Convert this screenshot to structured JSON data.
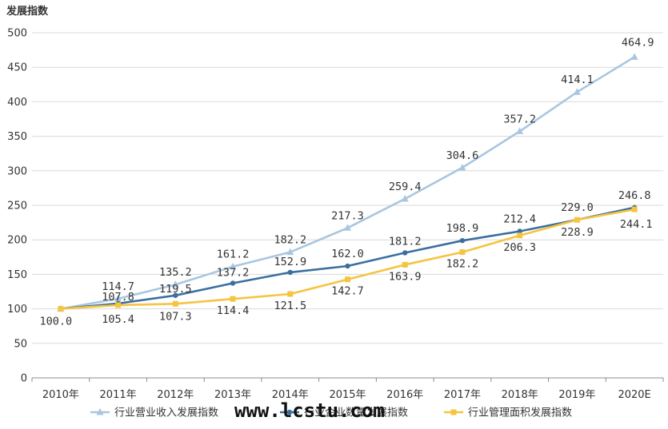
{
  "chart_data": {
    "type": "line",
    "title": "发展指数",
    "categories": [
      "2010年",
      "2011年",
      "2012年",
      "2013年",
      "2014年",
      "2015年",
      "2016年",
      "2017年",
      "2018年",
      "2019年",
      "2020E"
    ],
    "ylim": [
      0,
      500
    ],
    "yticks": [
      0,
      50,
      100,
      150,
      200,
      250,
      300,
      350,
      400,
      450,
      500
    ],
    "grid": true,
    "legend_position": "bottom",
    "series": [
      {
        "name": "行业营业收入发展指数",
        "color": "#a9c6e0",
        "marker": "triangle",
        "values": [
          100.0,
          114.7,
          135.2,
          161.2,
          182.2,
          217.3,
          259.4,
          304.6,
          357.2,
          414.1,
          464.9
        ],
        "labels": [
          "",
          "114.7",
          "135.2",
          "161.2",
          "182.2",
          "217.3",
          "259.4",
          "304.6",
          "357.2",
          "414.1",
          "464.9"
        ]
      },
      {
        "name": "行业企业数量发展指数",
        "color": "#3a6fa0",
        "marker": "circle",
        "values": [
          100.0,
          107.8,
          119.5,
          137.2,
          152.9,
          162.0,
          181.2,
          198.9,
          212.4,
          229.0,
          246.8
        ],
        "labels": [
          "",
          "107.8",
          "119.5",
          "137.2",
          "152.9",
          "162.0",
          "181.2",
          "198.9",
          "212.4",
          "229.0",
          "246.8"
        ]
      },
      {
        "name": "行业管理面积发展指数",
        "color": "#f5c440",
        "marker": "square",
        "values": [
          100.0,
          105.4,
          107.3,
          114.4,
          121.5,
          142.7,
          163.9,
          182.2,
          206.3,
          228.9,
          244.1
        ],
        "labels": [
          "100.0",
          "105.4",
          "107.3",
          "114.4",
          "121.5",
          "142.7",
          "163.9",
          "182.2",
          "206.3",
          "228.9",
          "244.1"
        ]
      }
    ]
  },
  "watermark": "www.lcstu.com"
}
